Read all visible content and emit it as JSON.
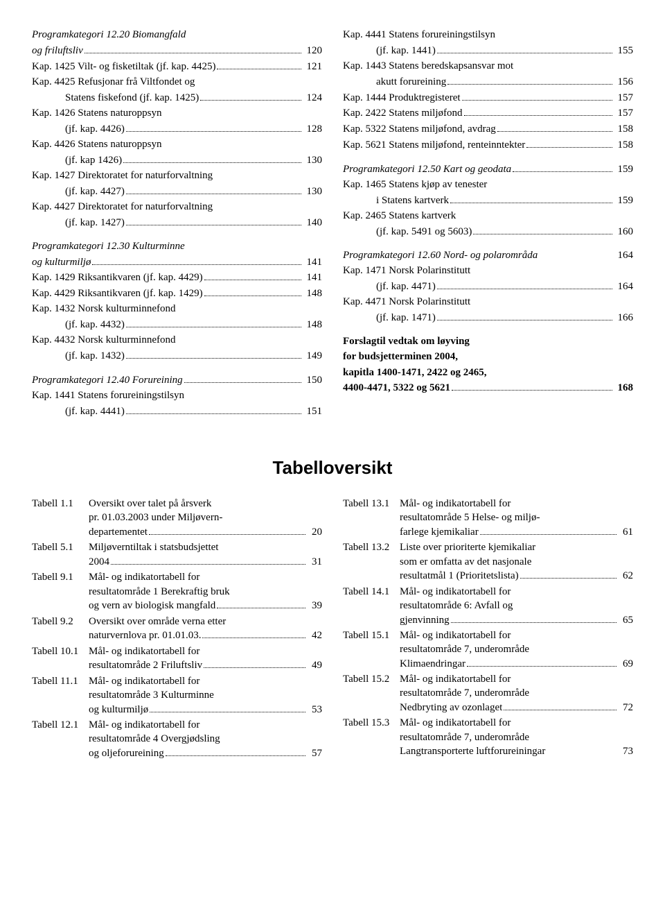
{
  "leftCol": [
    {
      "type": "cat",
      "lines": [
        "Programkategori 12.20 Biomangfald",
        "og friluftsliv"
      ],
      "page": "120"
    },
    {
      "type": "kap",
      "label": "Kap. 1425 Vilt- og fisketiltak (jf. kap. 4425)",
      "page": "121"
    },
    {
      "type": "kap-multi",
      "lines": [
        "Kap. 4425 Refusjonar frå Viltfondet og",
        "Statens fiskefond (jf. kap. 1425)"
      ],
      "indent": true,
      "page": "124"
    },
    {
      "type": "kap-multi",
      "lines": [
        "Kap. 1426 Statens naturoppsyn",
        "(jf. kap. 4426)"
      ],
      "indent": true,
      "page": "128"
    },
    {
      "type": "kap-multi",
      "lines": [
        "Kap. 4426 Statens naturoppsyn",
        "(jf. kap 1426)"
      ],
      "indent": true,
      "page": "130"
    },
    {
      "type": "kap-multi",
      "lines": [
        "Kap. 1427 Direktoratet for naturforvaltning",
        "(jf. kap. 4427)"
      ],
      "indent": true,
      "page": "130"
    },
    {
      "type": "kap-multi",
      "lines": [
        "Kap. 4427 Direktoratet for naturforvaltning",
        "(jf. kap. 1427)"
      ],
      "indent": true,
      "page": "140"
    },
    {
      "type": "cat",
      "gap": true,
      "lines": [
        "Programkategori 12.30 Kulturminne",
        "og kulturmiljø"
      ],
      "page": "141"
    },
    {
      "type": "kap",
      "label": "Kap. 1429 Riksantikvaren (jf. kap. 4429)",
      "page": "141"
    },
    {
      "type": "kap",
      "label": "Kap. 4429 Riksantikvaren (jf. kap. 1429)",
      "page": "148"
    },
    {
      "type": "kap-multi",
      "lines": [
        "Kap. 1432 Norsk kulturminnefond",
        "(jf. kap. 4432)"
      ],
      "indent": true,
      "page": "148"
    },
    {
      "type": "kap-multi",
      "lines": [
        "Kap. 4432 Norsk kulturminnefond",
        "(jf. kap. 1432)"
      ],
      "indent": true,
      "page": "149"
    },
    {
      "type": "cat",
      "gap": true,
      "lines": [
        "Programkategori 12.40 Forureining"
      ],
      "page": "150"
    },
    {
      "type": "kap-multi",
      "lines": [
        "Kap. 1441 Statens forureiningstilsyn",
        "(jf. kap. 4441)"
      ],
      "indent": true,
      "page": "151"
    }
  ],
  "rightCol": [
    {
      "type": "kap-multi",
      "lines": [
        "Kap. 4441 Statens forureiningstilsyn",
        "(jf. kap. 1441)"
      ],
      "indent": true,
      "page": "155"
    },
    {
      "type": "kap-multi",
      "lines": [
        "Kap. 1443 Statens beredskapsansvar mot",
        "akutt forureining"
      ],
      "indent": true,
      "page": "156"
    },
    {
      "type": "kap",
      "label": "Kap. 1444 Produktregisteret",
      "page": "157"
    },
    {
      "type": "kap",
      "label": "Kap. 2422 Statens miljøfond",
      "page": "157"
    },
    {
      "type": "kap",
      "label": "Kap. 5322 Statens miljøfond, avdrag",
      "page": "158"
    },
    {
      "type": "kap",
      "label": "Kap. 5621 Statens miljøfond, renteinntekter",
      "page": "158"
    },
    {
      "type": "cat",
      "gap": true,
      "lines": [
        "Programkategori 12.50 Kart og geodata"
      ],
      "page": "159"
    },
    {
      "type": "kap-multi",
      "lines": [
        "Kap. 1465 Statens kjøp av tenester",
        "i Statens kartverk"
      ],
      "indent": true,
      "page": "159"
    },
    {
      "type": "kap-multi",
      "lines": [
        "Kap. 2465 Statens kartverk",
        "(jf. kap. 5491 og 5603)"
      ],
      "indent": true,
      "page": "160"
    },
    {
      "type": "cat",
      "gap": true,
      "lines": [
        "Programkategori 12.60 Nord- og polarområda"
      ],
      "page": "164",
      "nodots": true
    },
    {
      "type": "kap-multi",
      "lines": [
        "Kap. 1471 Norsk Polarinstitutt",
        "(jf. kap. 4471)"
      ],
      "indent": true,
      "page": "164"
    },
    {
      "type": "kap-multi",
      "lines": [
        "Kap. 4471 Norsk Polarinstitutt",
        "(jf. kap. 1471)"
      ],
      "indent": true,
      "page": "166"
    },
    {
      "type": "forslag",
      "lines": [
        "Forslagtil vedtak om løyving",
        "for budsjetterminen 2004,",
        "kapitla 1400-1471, 2422 og 2465,",
        "4400-4471, 5322 og 5621"
      ],
      "page": "168"
    }
  ],
  "tabTitle": "Tabelloversikt",
  "tabLeft": [
    {
      "label": "Tabell 1.1",
      "lines": [
        "Oversikt over talet på årsverk",
        "pr. 01.03.2003 under Miljøvern-",
        "departementet"
      ],
      "page": "20"
    },
    {
      "label": "Tabell 5.1",
      "lines": [
        "Miljøverntiltak i statsbudsjettet",
        "2004"
      ],
      "page": "31"
    },
    {
      "label": "Tabell 9.1",
      "lines": [
        "Mål- og indikatortabell for",
        "resultatområde 1 Berekraftig bruk",
        "og vern av biologisk mangfald"
      ],
      "page": "39"
    },
    {
      "label": "Tabell 9.2",
      "lines": [
        "Oversikt over område verna etter",
        "naturvernlova pr. 01.01.03."
      ],
      "page": "42"
    },
    {
      "label": "Tabell 10.1",
      "lines": [
        "Mål- og indikatortabell for",
        "resultatområde 2 Friluftsliv"
      ],
      "page": "49"
    },
    {
      "label": "Tabell 11.1",
      "lines": [
        "Mål- og indikatortabell for",
        "resultatområde 3 Kulturminne",
        "og kulturmiljø"
      ],
      "page": "53"
    },
    {
      "label": "Tabell 12.1",
      "lines": [
        "Mål- og indikatortabell for",
        "resultatområde 4 Overgjødsling",
        "og oljeforureining"
      ],
      "page": "57"
    }
  ],
  "tabRight": [
    {
      "label": "Tabell 13.1",
      "lines": [
        "Mål- og indikatortabell for",
        "resultatområde 5 Helse- og miljø-",
        "farlege kjemikaliar"
      ],
      "page": "61"
    },
    {
      "label": "Tabell 13.2",
      "lines": [
        "Liste over prioriterte kjemikaliar",
        "som er omfatta av det nasjonale",
        "resultatmål 1 (Prioritetslista)"
      ],
      "page": "62"
    },
    {
      "label": "Tabell 14.1",
      "lines": [
        "Mål- og indikatortabell for",
        "resultatområde 6: Avfall og",
        "gjenvinning"
      ],
      "page": "65"
    },
    {
      "label": "Tabell 15.1",
      "lines": [
        "Mål- og indikatortabell for",
        "resultatområde 7, underområde",
        "Klimaendringar"
      ],
      "page": "69"
    },
    {
      "label": "Tabell 15.2",
      "lines": [
        "Mål- og indikatortabell for",
        "resultatområde 7, underområde",
        "Nedbryting av ozonlaget"
      ],
      "page": "72"
    },
    {
      "label": "Tabell 15.3",
      "lines": [
        "Mål- og indikatortabell for",
        "resultatområde 7, underområde",
        "Langtransporterte luftforureiningar"
      ],
      "page": "73",
      "nodots": true
    }
  ]
}
